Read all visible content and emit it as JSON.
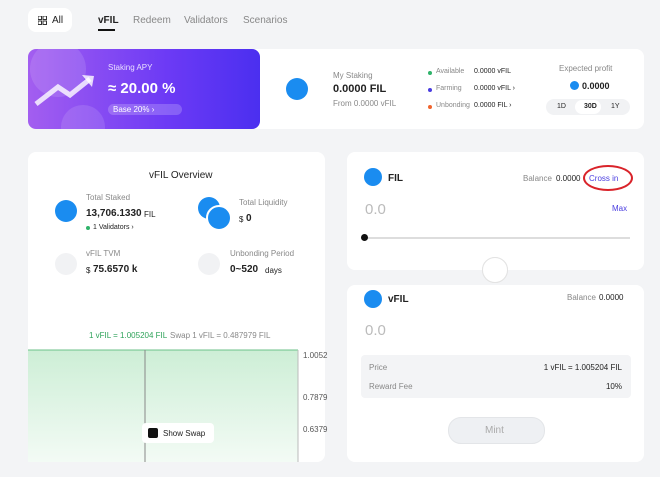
{
  "tabs": {
    "all": "All",
    "items": [
      "vFIL",
      "Redeem",
      "Validators",
      "Scenarios"
    ]
  },
  "banner": {
    "label": "Staking APY",
    "apy": "≈ 20.00 %",
    "base": "Base 20% ›"
  },
  "my_staking": {
    "label": "My Staking",
    "amount": "0.0000 FIL",
    "from": "From 0.0000 vFIL",
    "rows": [
      {
        "label": "Available",
        "value": "0.0000 vFIL"
      },
      {
        "label": "Farming",
        "value": "0.0000 vFIL ›"
      },
      {
        "label": "Unbonding",
        "value": "0.0000 FIL ›"
      }
    ],
    "profit_label": "Expected profit",
    "profit": "0.0000",
    "periods": [
      "1D",
      "30D",
      "1Y"
    ]
  },
  "overview": {
    "title": "vFIL Overview",
    "stats": [
      {
        "label": "Total Staked",
        "value": "13,706.1330",
        "unit": "FIL",
        "note": "1 Validators ›"
      },
      {
        "label": "Total Liquidity",
        "prefix": "$",
        "value": "0"
      },
      {
        "label": "vFIL TVM",
        "prefix": "$",
        "value": "75.6570 k"
      },
      {
        "label": "Unbonding Period",
        "value": "0~520",
        "unit": "days"
      }
    ],
    "chart": {
      "rate": "1 vFIL = 1.005204 FIL",
      "swap": "Swap 1 vFIL = 0.487979 FIL",
      "axis": [
        "1.0052",
        "0.7879",
        "0.6379"
      ],
      "toggle": "Show Swap"
    }
  },
  "swap_from": {
    "token": "FIL",
    "balance_label": "Balance",
    "balance": "0.0000",
    "cross_in": "Cross in",
    "amount": "0.0",
    "max": "Max"
  },
  "swap_to": {
    "token": "vFIL",
    "balance_label": "Balance",
    "balance": "0.0000",
    "amount": "0.0"
  },
  "details": [
    {
      "label": "Price",
      "value": "1 vFIL = 1.005204 FIL"
    },
    {
      "label": "Reward Fee",
      "value": "10%"
    }
  ],
  "action": "Mint"
}
